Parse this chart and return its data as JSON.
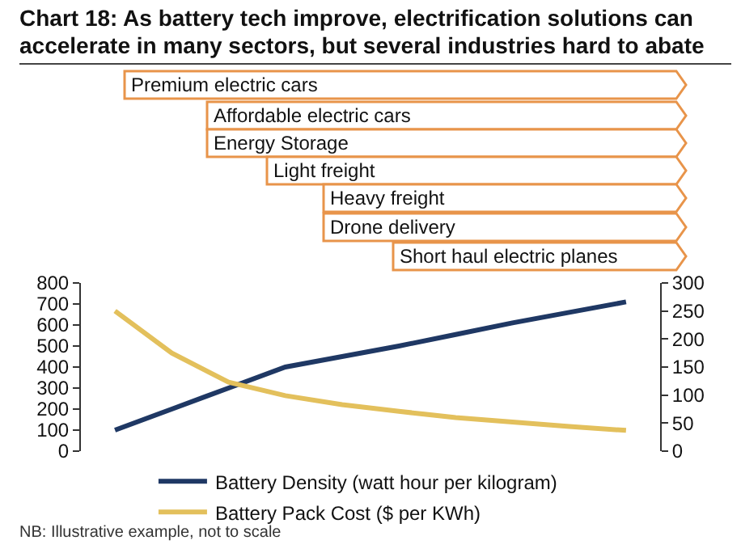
{
  "chart_data": {
    "type": "line",
    "title": "Chart 18: As battery tech improve, electrification solutions can accelerate  in many sectors, but several industries hard to abate",
    "categories": [
      null,
      null,
      null,
      null,
      null,
      null,
      null,
      null,
      null,
      null
    ],
    "series": [
      {
        "name": "Battery Density (watt hour per kilogram)",
        "color": "#1f3864",
        "values": [
          100,
          200,
          300,
          400,
          450,
          500,
          555,
          610,
          660,
          710
        ]
      },
      {
        "name": "Battery Pack Cost ($ per KWh)",
        "color": "#e3c05c",
        "axis": "y2",
        "values": [
          250,
          175,
          123,
          99,
          83,
          71,
          60,
          52,
          44,
          37
        ]
      }
    ],
    "ylim": [
      0,
      800
    ],
    "yticks": [
      0,
      100,
      200,
      300,
      400,
      500,
      600,
      700,
      800
    ],
    "y2lim": [
      0,
      300
    ],
    "y2ticks": [
      0,
      50,
      100,
      150,
      200,
      250,
      300
    ],
    "grid": false,
    "legend": "bottom",
    "marker": "none",
    "line_style": "solid",
    "annotations": [
      "Premium electric cars",
      "Affordable electric cars",
      "Energy Storage",
      "Light freight",
      "Heavy freight",
      "Drone delivery",
      "Short haul electric planes",
      "NB: Illustrative example, not to scale"
    ]
  }
}
